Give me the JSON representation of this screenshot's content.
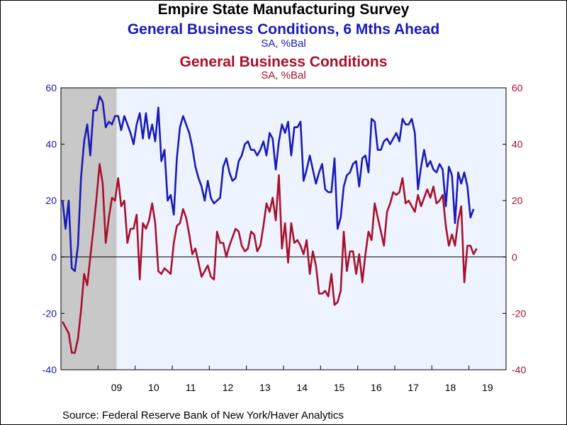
{
  "chart_data": {
    "type": "line",
    "title": "Empire State Manufacturing Survey",
    "series": [
      {
        "name": "General Business Conditions, 6 Mths Ahead",
        "units": "SA, %Bal",
        "color": "#1a1ab8",
        "axis": "left",
        "start": "2008-01",
        "values": [
          20,
          10,
          20,
          -4,
          -5,
          4,
          28,
          41,
          47,
          36,
          52,
          52,
          57,
          55,
          46,
          48,
          47,
          50,
          50,
          45,
          50,
          47,
          44,
          40,
          47,
          51,
          42,
          51,
          42,
          47,
          41,
          53,
          34,
          38,
          20,
          22,
          15,
          35,
          46,
          50,
          47,
          44,
          39,
          32,
          28,
          25,
          20,
          27,
          21,
          19,
          20,
          21,
          32,
          35,
          30,
          27,
          28,
          34,
          36,
          40,
          41,
          38,
          38,
          36,
          38,
          41,
          36,
          44,
          42,
          31,
          41,
          47,
          44,
          48,
          36,
          46,
          46,
          48,
          27,
          31,
          36,
          31,
          26,
          30,
          33,
          24,
          23,
          23,
          35,
          10,
          14,
          25,
          29,
          30,
          33,
          34,
          25,
          35,
          36,
          30,
          49,
          48,
          38,
          38,
          41,
          42,
          40,
          42,
          44,
          41,
          49,
          47,
          47,
          49,
          44,
          24,
          32,
          38,
          32,
          34,
          31,
          30,
          33,
          31,
          18,
          32,
          29,
          12,
          30,
          26,
          30,
          25,
          14,
          17
        ]
      },
      {
        "name": "General Business Conditions",
        "units": "SA, %Bal",
        "color": "#a8102c",
        "axis": "right",
        "start": "2008-01",
        "values": [
          -23,
          -25,
          -27,
          -34,
          -34,
          -29,
          -19,
          -6,
          -10,
          0,
          10,
          21,
          33,
          26,
          5,
          14,
          21,
          20,
          28,
          18,
          20,
          5,
          10,
          10,
          15,
          -8,
          12,
          10,
          13,
          19,
          12,
          -5,
          -6,
          -4,
          -5,
          -6,
          5,
          11,
          12,
          17,
          14,
          8,
          1,
          3,
          -2,
          -7,
          -5,
          -3,
          -7,
          -8,
          9,
          5,
          5,
          0,
          4,
          7,
          10,
          9,
          4,
          2,
          3,
          9,
          8,
          2,
          4,
          11,
          19,
          16,
          21,
          13,
          29,
          3,
          12,
          -2,
          12,
          5,
          6,
          4,
          1,
          6,
          -6,
          2,
          -3,
          -13,
          -13,
          -12,
          -14,
          -6,
          -17,
          -16,
          -12,
          9,
          -5,
          2,
          2,
          -6,
          1,
          -9,
          1,
          9,
          6,
          19,
          14,
          9,
          4,
          16,
          19,
          23,
          22,
          23,
          28,
          19,
          20,
          18,
          16,
          22,
          18,
          21,
          24,
          21,
          25,
          19,
          20,
          22,
          11,
          4,
          8,
          4,
          13,
          18,
          -9,
          4,
          4,
          1,
          3
        ]
      }
    ],
    "x_tick_labels": [
      "09",
      "10",
      "11",
      "12",
      "13",
      "14",
      "15",
      "16",
      "17",
      "18",
      "19"
    ],
    "y_tick_labels": [
      "60",
      "40",
      "20",
      "0",
      "-20",
      "-40"
    ],
    "ylim": [
      -40,
      60
    ],
    "recession_shading": [
      "2008-01",
      "2009-06"
    ],
    "xlim": [
      "2008-01",
      "2019-12"
    ]
  },
  "header": {
    "title": "Empire State Manufacturing Survey",
    "series1_label": "General Business Conditions, 6 Mths Ahead",
    "series1_units": "SA, %Bal",
    "series2_label": "General Business Conditions",
    "series2_units": "SA, %Bal"
  },
  "footer": {
    "source": "Source:  Federal Reserve Bank of New York/Haver Analytics"
  },
  "colors": {
    "background": "#ffffff",
    "plot_area": "#eef4ff",
    "recession": "#c8c8c8",
    "left_axis": "#1a1ab8",
    "right_axis": "#a8102c"
  }
}
